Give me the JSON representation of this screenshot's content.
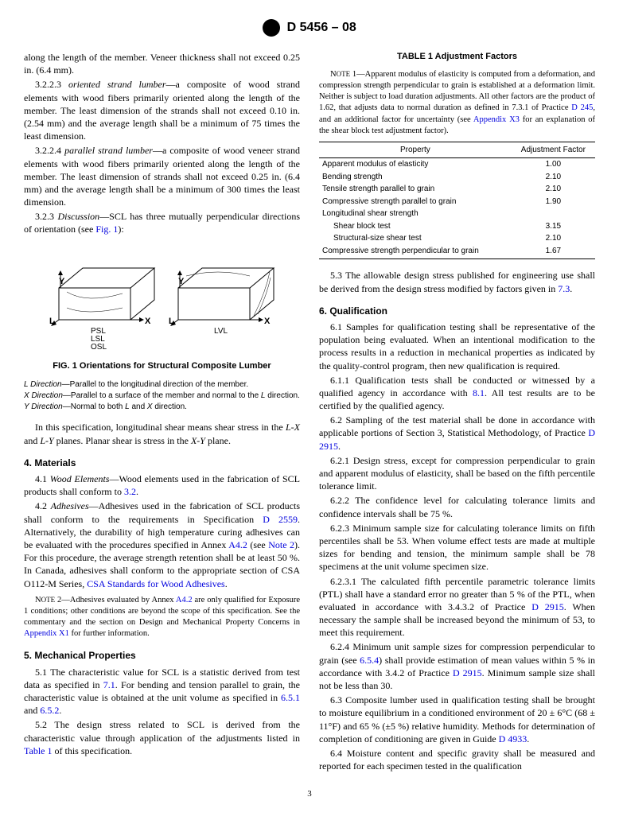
{
  "header": {
    "doc_id": "D 5456 – 08"
  },
  "col1": {
    "p_along": "along the length of the member. Veneer thickness shall not exceed 0.25 in. (6.4 mm).",
    "p_3223": "3.2.2.3 <i>oriented strand lumber</i>—a composite of wood strand elements with wood fibers primarily oriented along the length of the member. The least dimension of the strands shall not exceed 0.10 in. (2.54 mm) and the average length shall be a minimum of 75 times the least dimension.",
    "p_3224": "3.2.2.4 <i>parallel strand lumber</i>—a composite of wood veneer strand elements with wood fibers primarily oriented along the length of the member. The least dimension of strands shall not exceed 0.25 in. (6.4 mm) and the average length shall be a minimum of 300 times the least dimension.",
    "p_323": "3.2.3 <i>Discussion</i>—SCL has three mutually perpendicular directions of orientation (see <span class=\"link\">Fig. 1</span>):",
    "fig_caption": "FIG. 1 Orientations for Structural Composite Lumber",
    "fig_label_left": "PSL\nLSL\nOSL",
    "fig_label_right": "LVL",
    "legend_L": "<i>L Direction</i>—Parallel to the longitudinal direction of the member.",
    "legend_X": "<i>X Direction</i>—Parallel to a surface of the member and normal to the <i>L</i> direction.",
    "legend_Y": "<i>Y Direction</i>—Normal to both <i>L</i> and <i>X</i> direction.",
    "p_spec": "In this specification, longitudinal shear means shear stress in the <i>L-X</i> and <i>L-Y</i> planes. Planar shear is stress in the <i>X-Y</i> plane.",
    "sec4": "4.  Materials",
    "p_41": "4.1 <i>Wood Elements</i>—Wood elements used in the fabrication of SCL products shall conform to <span class=\"link\">3.2</span>.",
    "p_42": "4.2 <i>Adhesives</i>—Adhesives used in the fabrication of SCL products shall conform to the requirements in Specification <span class=\"link\">D 2559</span>. Alternatively, the durability of high temperature curing adhesives can be evaluated with the procedures specified in Annex <span class=\"link\">A4.2</span> (see <span class=\"link\">Note 2</span>). For this procedure, the average strength retention shall be at least 50 %. In Canada, adhesives shall conform to the appropriate section of CSA O112-M Series, <span class=\"link\">CSA Standards for Wood Adhesives</span>.",
    "note2": "N<span style=\"font-size:9px\">OTE</span> 2—Adhesives evaluated by Annex <span class=\"link\">A4.2</span> are only qualified for Exposure 1 conditions; other conditions are beyond the scope of this specification. See the commentary and the section on Design and Mechanical Property Concerns in <span class=\"link\">Appendix X1</span> for further information.",
    "sec5": "5.  Mechanical Properties",
    "p_51": "5.1 The characteristic value for SCL is a statistic derived from test data as specified in <span class=\"link\">7.1</span>. For bending and tension parallel to grain, the characteristic value is obtained at the unit volume as specified in <span class=\"link\">6.5.1</span> and <span class=\"link\">6.5.2</span>.",
    "p_52": "5.2 The design stress related to SCL is derived from the characteristic value through application of the adjustments listed in <span class=\"link\">Table 1</span> of this specification."
  },
  "col2": {
    "table_title": "TABLE 1  Adjustment Factors",
    "note1": "N<span style=\"font-size:9px\">OTE</span> 1—Apparent modulus of elasticity is computed from a deformation, and compression strength perpendicular to grain is established at a deformation limit. Neither is subject to load duration adjustments. All other factors are the product of 1.62, that adjusts data to normal duration as defined in 7.3.1 of Practice <span class=\"link\">D 245</span>, and an additional factor for uncertainty (see <span class=\"link\">Appendix X3</span> for an explanation of the shear block test adjustment factor).",
    "table": {
      "head_prop": "Property",
      "head_factor": "Adjustment Factor",
      "rows": [
        {
          "p": "Apparent modulus of elasticity",
          "f": "1.00",
          "indent": false
        },
        {
          "p": "Bending strength",
          "f": "2.10",
          "indent": false
        },
        {
          "p": "Tensile strength parallel to grain",
          "f": "2.10",
          "indent": false
        },
        {
          "p": "Compressive strength parallel to grain",
          "f": "1.90",
          "indent": false
        },
        {
          "p": "Longitudinal shear strength",
          "f": "",
          "indent": false
        },
        {
          "p": "Shear block test",
          "f": "3.15",
          "indent": true
        },
        {
          "p": "Structural-size shear test",
          "f": "2.10",
          "indent": true
        },
        {
          "p": "Compressive strength perpendicular to grain",
          "f": "1.67",
          "indent": false
        }
      ]
    },
    "p_53": "5.3 The allowable design stress published for engineering use shall be derived from the design stress modified by factors given in <span class=\"link\">7.3</span>.",
    "sec6": "6.  Qualification",
    "p_61": "6.1 Samples for qualification testing shall be representative of the population being evaluated. When an intentional modification to the process results in a reduction in mechanical properties as indicated by the quality-control program, then new qualification is required.",
    "p_611": "6.1.1 Qualification tests shall be conducted or witnessed by a qualified agency in accordance with <span class=\"link\">8.1</span>. All test results are to be certified by the qualified agency.",
    "p_62": "6.2 Sampling of the test material shall be done in accordance with applicable portions of Section 3, Statistical Methodology, of Practice <span class=\"link\">D 2915</span>.",
    "p_621": "6.2.1 Design stress, except for compression perpendicular to grain and apparent modulus of elasticity, shall be based on the fifth percentile tolerance limit.",
    "p_622": "6.2.2 The confidence level for calculating tolerance limits and confidence intervals shall be 75 %.",
    "p_623": "6.2.3 Minimum sample size for calculating tolerance limits on fifth percentiles shall be 53. When volume effect tests are made at multiple sizes for bending and tension, the minimum sample shall be 78 specimens at the unit volume specimen size.",
    "p_6231": "6.2.3.1 The calculated fifth percentile parametric tolerance limits (PTL) shall have a standard error no greater than 5 % of the PTL, when evaluated in accordance with 3.4.3.2 of Practice <span class=\"link\">D 2915</span>. When necessary the sample shall be increased beyond the minimum of 53, to meet this requirement.",
    "p_624": "6.2.4 Minimum unit sample sizes for compression perpendicular to grain (see <span class=\"link\">6.5.4</span>) shall provide estimation of mean values within 5 % in accordance with 3.4.2 of Practice <span class=\"link\">D 2915</span>. Minimum sample size shall not be less than 30.",
    "p_63": "6.3 Composite lumber used in qualification testing shall be brought to moisture equilibrium in a conditioned environment of 20 ± 6°C (68 ± 11°F) and 65 % (±5 %) relative humidity. Methods for determination of completion of conditioning are given in Guide <span class=\"link\">D 4933</span>.",
    "p_64": "6.4 Moisture content and specific gravity shall be measured and reported for each specimen tested in the qualification"
  },
  "page_no": "3"
}
